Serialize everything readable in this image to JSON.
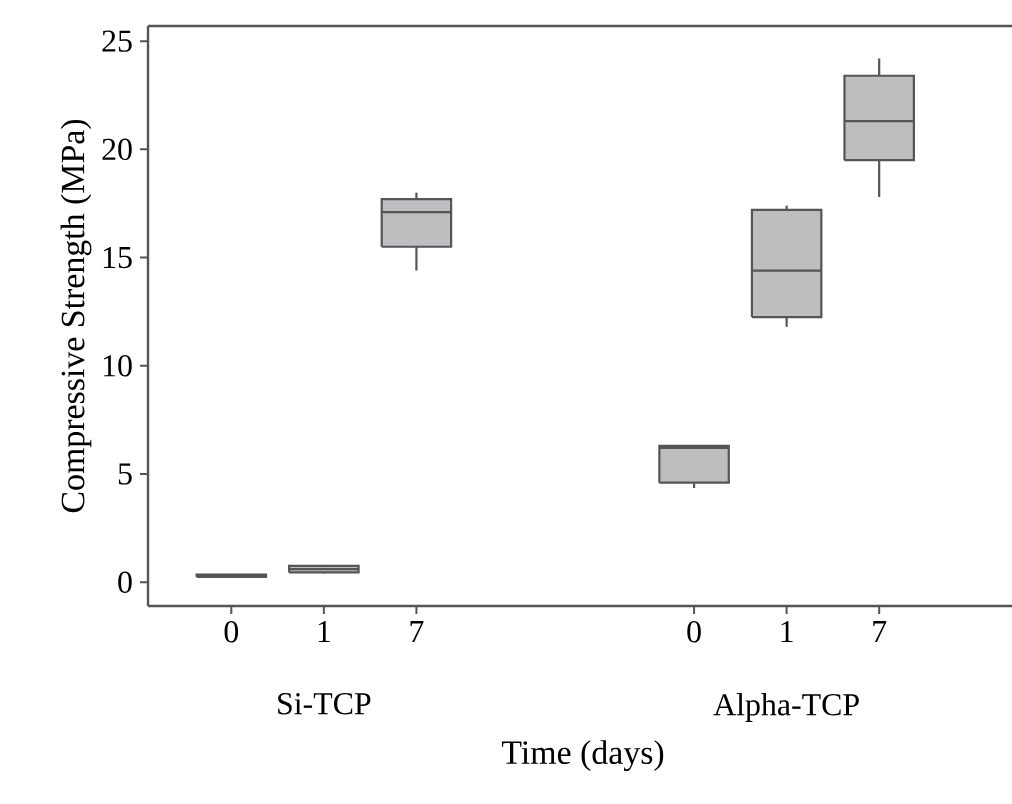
{
  "chart_data": {
    "type": "box",
    "xlabel": "Time (days)",
    "ylabel": "Compressive Strength (MPa)",
    "categories": [
      "0",
      "1",
      "7",
      null,
      null,
      "0",
      "1",
      "7"
    ],
    "boxes": [
      {
        "low": 0.25,
        "q1": 0.25,
        "median": 0.3,
        "q3": 0.35,
        "high": 0.35
      },
      {
        "low": 0.4,
        "q1": 0.45,
        "median": 0.6,
        "q3": 0.75,
        "high": 0.8
      },
      {
        "low": 14.4,
        "q1": 15.5,
        "median": 17.1,
        "q3": 17.7,
        "high": 18.0
      },
      null,
      null,
      {
        "low": 4.35,
        "q1": 4.6,
        "median": 6.2,
        "q3": 6.3,
        "high": 6.3
      },
      {
        "low": 11.8,
        "q1": 12.25,
        "median": 14.4,
        "q3": 17.2,
        "high": 17.4
      },
      {
        "low": 17.8,
        "q1": 19.5,
        "median": 21.3,
        "q3": 23.4,
        "high": 24.2
      }
    ],
    "color": "#bebec0",
    "ylim": [
      -1.1,
      25.7
    ],
    "yticks": [
      0,
      5,
      10,
      15,
      20,
      25
    ],
    "annotations": [
      "Si-TCP",
      "Alpha-TCP"
    ]
  }
}
